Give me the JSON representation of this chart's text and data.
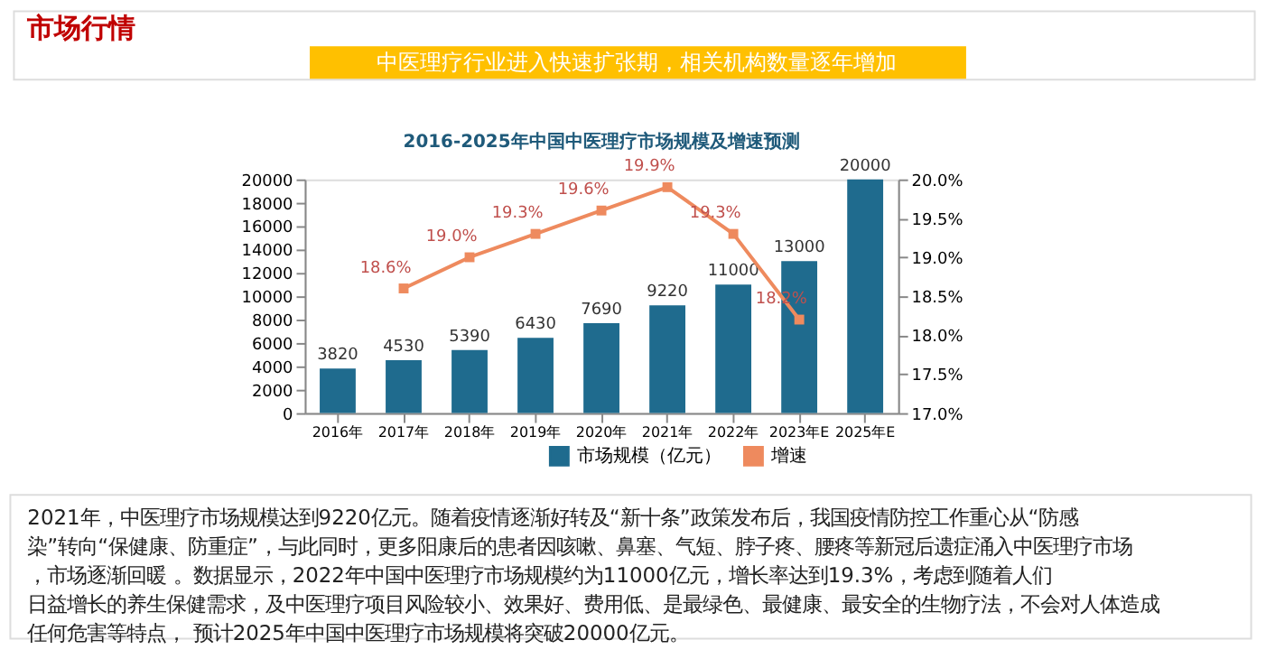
{
  "chart_data": {
    "type": "bar",
    "title": "2016-2025年中国中医理疗市场规模及增速预测",
    "categories": [
      "2016年",
      "2017年",
      "2018年",
      "2019年",
      "2020年",
      "2021年",
      "2022年",
      "2023年E",
      "2025年E"
    ],
    "series": [
      {
        "name": "市场规模（亿元）",
        "type": "bar",
        "color": "#1f6b8e",
        "values": [
          3820,
          4530,
          5390,
          6430,
          7690,
          9220,
          11000,
          13000,
          20000
        ]
      },
      {
        "name": "增速",
        "type": "line",
        "axis": "y2",
        "color": "#ee8a5e",
        "marker": "square",
        "values": [
          null,
          18.6,
          19.0,
          19.3,
          19.6,
          19.9,
          19.3,
          18.2,
          null
        ],
        "value_labels": [
          null,
          "18.6%",
          "19.0%",
          "19.3%",
          "19.6%",
          "19.9%",
          "19.3%",
          "18.2%",
          null
        ]
      }
    ],
    "ylim": [
      0,
      20000
    ],
    "yticks": [
      0,
      2000,
      4000,
      6000,
      8000,
      10000,
      12000,
      14000,
      16000,
      18000,
      20000
    ],
    "y2lim": [
      17,
      20
    ],
    "y2ticks": [
      {
        "value": 17,
        "label": "17.0%"
      },
      {
        "value": 17.5,
        "label": "17.5%"
      },
      {
        "value": 18,
        "label": "18.0%"
      },
      {
        "value": 18.5,
        "label": "18.5%"
      },
      {
        "value": 19,
        "label": "19.0%"
      },
      {
        "value": 19.5,
        "label": "19.5%"
      },
      {
        "value": 20,
        "label": "20.0%"
      }
    ],
    "data_labels": true,
    "grid": false,
    "legend": "bottom",
    "annotations": [
      "市场行情",
      "中医理疗行业进入快速扩张期，相关机构数量逐年增加",
      "2021年，中医理疗市场规模达到9220亿元。随着疫情逐渐好转及“新十条”政策发布后，我国疫情防控工作重心从“防感染”转向“保健康、防重症”，与此同时，更多阳康后的患者因咳嗽、鼻塞、气短、脖子疼、腰疼等新冠后遗症涌入中医理疗市场，市场逐渐回暖 。数据显示，2022年中国中医理疗市场规模约为11000亿元，增长率达到19.3%，考虑到随着人们日益增长的养生保健需求，及中医理疗项目风险较小、效果好、费用低、是最绿色、最健康、最安全的生物疗法，不会对人体造成任何危害等特点， 预计2025年中国中医理疗市场规模将突破20000亿元。"
    ]
  }
}
